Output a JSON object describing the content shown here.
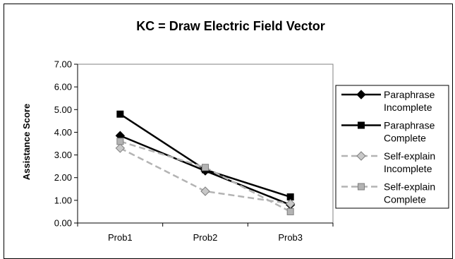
{
  "chart_data": {
    "type": "line",
    "title": "KC = Draw Electric Field Vector",
    "xlabel": "",
    "ylabel": "Assistance Score",
    "categories": [
      "Prob1",
      "Prob2",
      "Prob3"
    ],
    "ylim": [
      0,
      7
    ],
    "y_ticks": [
      "0.00",
      "1.00",
      "2.00",
      "3.00",
      "4.00",
      "5.00",
      "6.00",
      "7.00"
    ],
    "grid": false,
    "legend_position": "right",
    "series": [
      {
        "name": "Paraphrase Incomplete",
        "legend_lines": [
          "Paraphrase",
          "Incomplete"
        ],
        "values": [
          3.85,
          2.3,
          0.8
        ],
        "color": "#000000",
        "line_style": "solid",
        "marker": "diamond",
        "marker_fill": "#000000"
      },
      {
        "name": "Paraphrase Complete",
        "legend_lines": [
          "Paraphrase",
          "Complete"
        ],
        "values": [
          4.8,
          2.35,
          1.15
        ],
        "color": "#000000",
        "line_style": "solid",
        "marker": "square",
        "marker_fill": "#000000"
      },
      {
        "name": "Self-explain Incomplete",
        "legend_lines": [
          "Self-explain",
          "Incomplete"
        ],
        "values": [
          3.3,
          1.4,
          0.85
        ],
        "color": "#b3b3b3",
        "line_style": "dashed",
        "marker": "diamond",
        "marker_fill": "#c8c8c8"
      },
      {
        "name": "Self-explain Complete",
        "legend_lines": [
          "Self-explain",
          "Complete"
        ],
        "values": [
          3.6,
          2.45,
          0.5
        ],
        "color": "#b3b3b3",
        "line_style": "dashed",
        "marker": "square",
        "marker_fill": "#b3b3b3"
      }
    ]
  }
}
